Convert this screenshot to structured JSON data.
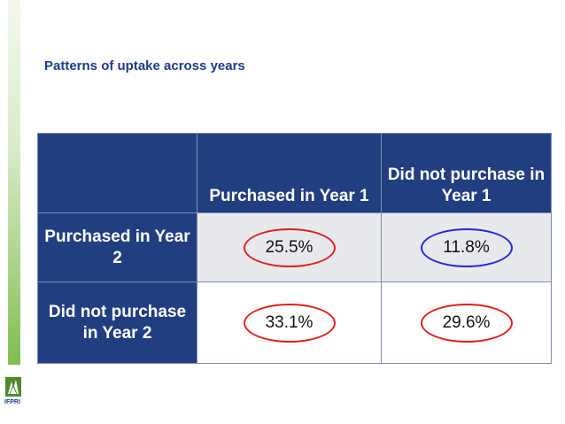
{
  "slide": {
    "title": "Patterns of uptake across years"
  },
  "table": {
    "col_headers": [
      "Purchased in Year 1",
      "Did not purchase in Year 1"
    ],
    "rows": [
      {
        "label": "Purchased in Year 2",
        "values": [
          "25.5%",
          "11.8%"
        ],
        "rings": [
          "red",
          "blue"
        ]
      },
      {
        "label": "Did not purchase in Year 2",
        "values": [
          "33.1%",
          "29.6%"
        ],
        "rings": [
          "red",
          "red"
        ]
      }
    ]
  },
  "colors": {
    "header_bg": "#213f80",
    "title": "#1f3b8a",
    "ring_red": "#e0201b",
    "ring_blue": "#2626d9"
  },
  "logo": {
    "text": "IFPRI",
    "icon": "ifpri-logo-icon"
  }
}
